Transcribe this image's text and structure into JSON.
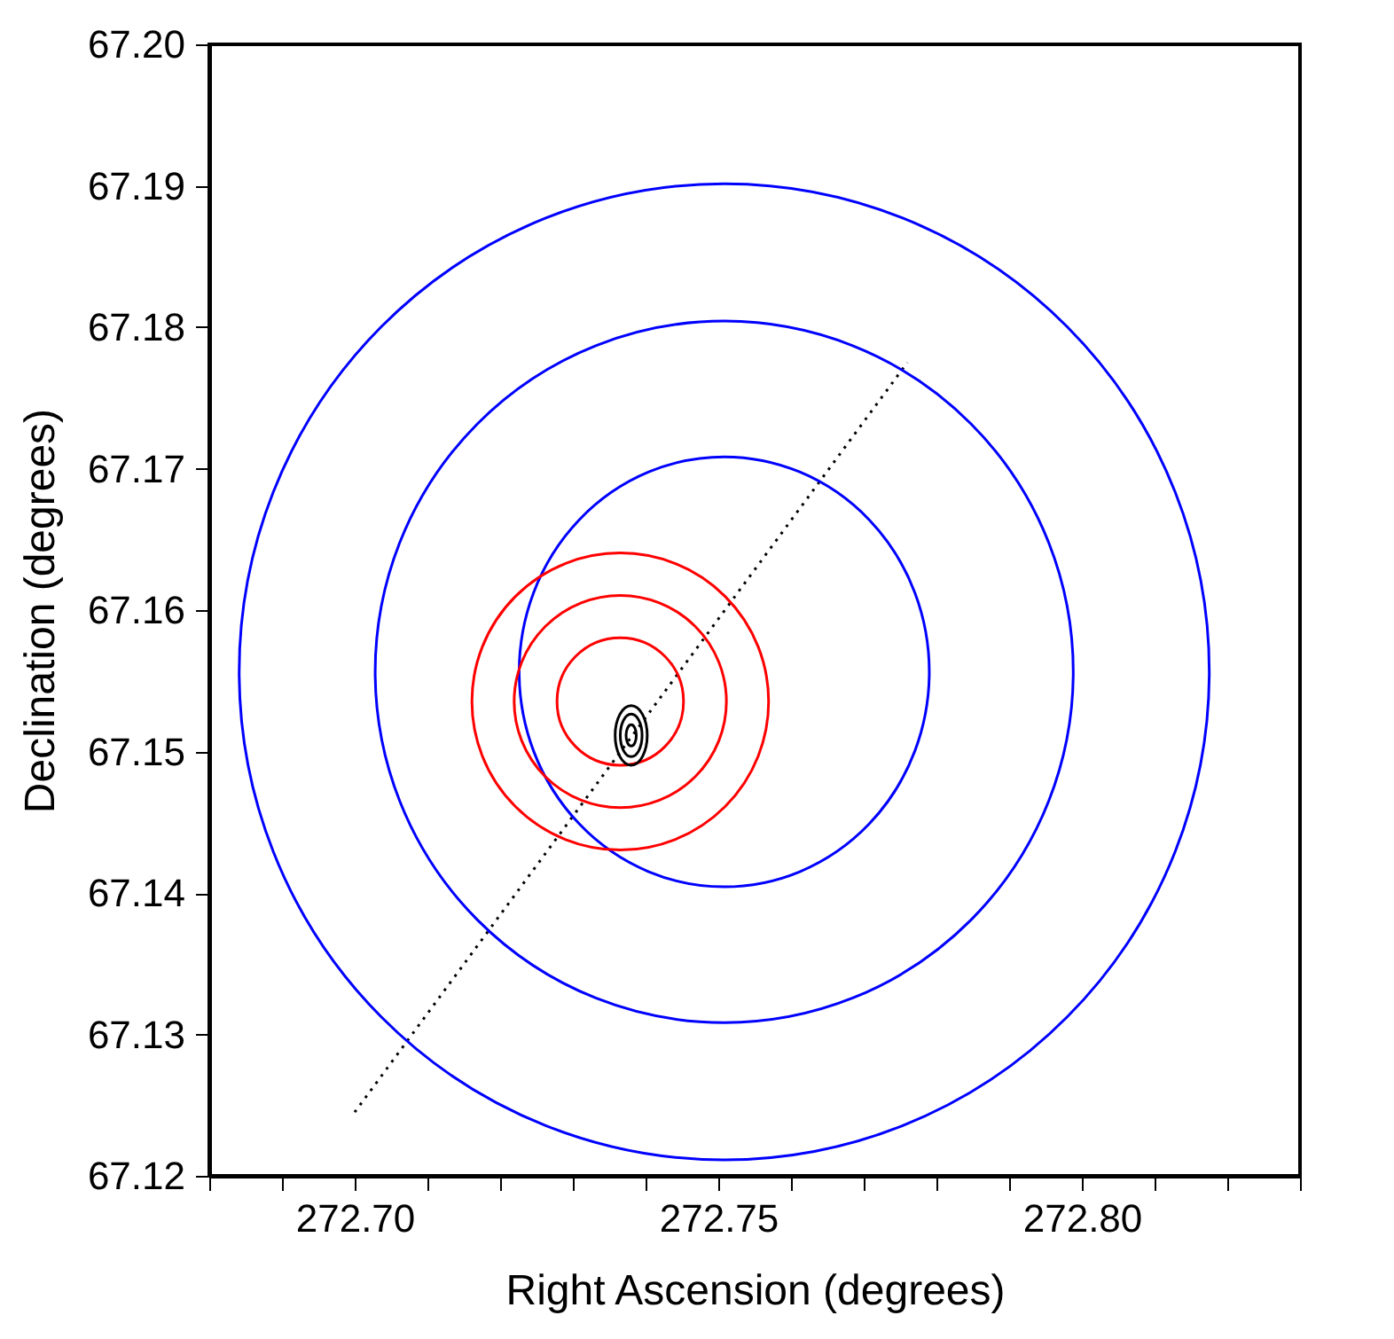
{
  "chart_data": {
    "type": "line",
    "xlabel": "Right Ascension (degrees)",
    "ylabel": "Declination (degrees)",
    "xlim": [
      272.68,
      272.83
    ],
    "ylim": [
      67.12,
      67.2
    ],
    "xticks": [
      {
        "value": 272.68,
        "label": null
      },
      {
        "value": 272.69,
        "label": null
      },
      {
        "value": 272.7,
        "label": "272.70"
      },
      {
        "value": 272.71,
        "label": null
      },
      {
        "value": 272.72,
        "label": null
      },
      {
        "value": 272.73,
        "label": null
      },
      {
        "value": 272.74,
        "label": null
      },
      {
        "value": 272.75,
        "label": "272.75"
      },
      {
        "value": 272.76,
        "label": null
      },
      {
        "value": 272.77,
        "label": null
      },
      {
        "value": 272.78,
        "label": null
      },
      {
        "value": 272.79,
        "label": null
      },
      {
        "value": 272.8,
        "label": "272.80"
      },
      {
        "value": 272.81,
        "label": null
      },
      {
        "value": 272.82,
        "label": null
      },
      {
        "value": 272.83,
        "label": null
      }
    ],
    "yticks": [
      {
        "value": 67.12,
        "label": "67.12"
      },
      {
        "value": 67.13,
        "label": "67.13"
      },
      {
        "value": 67.14,
        "label": "67.14"
      },
      {
        "value": 67.15,
        "label": "67.15"
      },
      {
        "value": 67.16,
        "label": "67.16"
      },
      {
        "value": 67.17,
        "label": "67.17"
      },
      {
        "value": 67.18,
        "label": "67.18"
      },
      {
        "value": 67.19,
        "label": "67.19"
      },
      {
        "value": 67.2,
        "label": "67.20"
      }
    ],
    "series": [
      {
        "color": "#000000",
        "line_style": "dotted",
        "x": [
          272.7,
          272.776
        ],
        "values": [
          67.1245,
          67.1775
        ]
      }
    ]
  }
}
